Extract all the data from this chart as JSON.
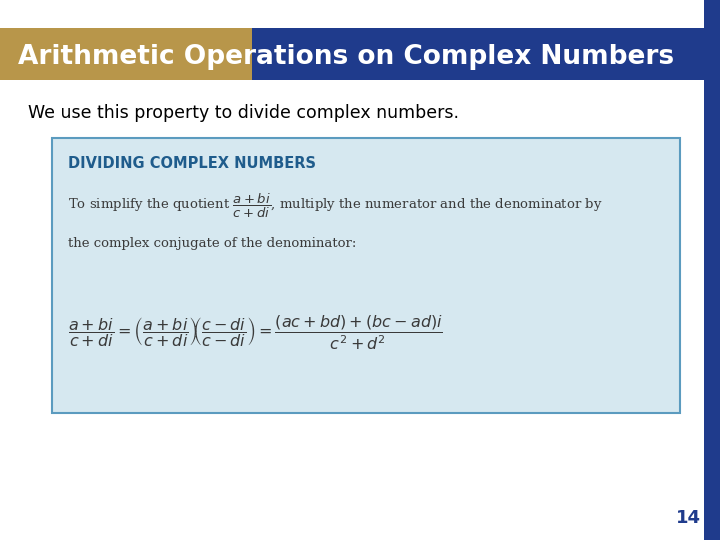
{
  "title": "Arithmetic Operations on Complex Numbers",
  "title_bg_gold": "#B8964A",
  "title_bg_blue": "#1F3B8C",
  "title_text_color": "#FFFFFF",
  "body_bg": "#FFFFFF",
  "subtitle_text": "We use this property to divide complex numbers.",
  "subtitle_color": "#000000",
  "box_bg": "#D6E8F0",
  "box_border": "#5B9BBF",
  "box_title": "DIVIDING COMPLEX NUMBERS",
  "box_title_color": "#1F5C8C",
  "page_number": "14",
  "page_number_color": "#1F3B8C",
  "figsize": [
    7.2,
    5.4
  ],
  "dpi": 100
}
